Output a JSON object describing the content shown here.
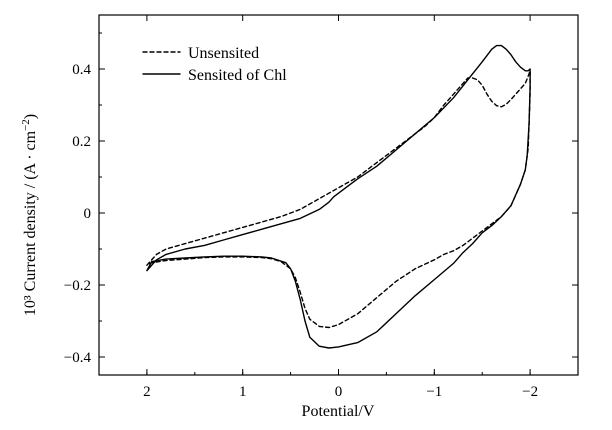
{
  "chart_data": {
    "type": "line",
    "title": "",
    "xlabel": "Potential/V",
    "ylabel_text": "Current density / (A · cm",
    "ylabel_prefix": "10³ ",
    "ylabel_superscript": "−2",
    "ylabel_close": ")",
    "xlim": [
      2.5,
      -2.5
    ],
    "ylim": [
      -0.45,
      0.55
    ],
    "x_ticks": [
      2,
      1,
      0,
      -1,
      -2
    ],
    "x_tick_labels": [
      "2",
      "1",
      "0",
      "−1",
      "−2"
    ],
    "y_ticks": [
      0.4,
      0.2,
      0,
      -0.2,
      -0.4
    ],
    "y_tick_labels": [
      "0.4",
      "0.2",
      "0",
      "−0.2",
      "−0.4"
    ],
    "grid": false,
    "legend_placement": "top-left",
    "series": [
      {
        "name": "Unsensited",
        "style": "dashed",
        "color": "#000000",
        "points": [
          [
            2.0,
            -0.145
          ],
          [
            1.9,
            -0.115
          ],
          [
            1.8,
            -0.1
          ],
          [
            1.6,
            -0.085
          ],
          [
            1.4,
            -0.07
          ],
          [
            1.2,
            -0.055
          ],
          [
            1.0,
            -0.04
          ],
          [
            0.8,
            -0.025
          ],
          [
            0.6,
            -0.01
          ],
          [
            0.4,
            0.01
          ],
          [
            0.2,
            0.04
          ],
          [
            0.1,
            0.055
          ],
          [
            0.0,
            0.07
          ],
          [
            -0.1,
            0.085
          ],
          [
            -0.2,
            0.1
          ],
          [
            -0.3,
            0.12
          ],
          [
            -0.5,
            0.16
          ],
          [
            -0.7,
            0.2
          ],
          [
            -0.9,
            0.24
          ],
          [
            -1.0,
            0.265
          ],
          [
            -1.1,
            0.3
          ],
          [
            -1.2,
            0.33
          ],
          [
            -1.3,
            0.36
          ],
          [
            -1.35,
            0.375
          ],
          [
            -1.4,
            0.375
          ],
          [
            -1.45,
            0.37
          ],
          [
            -1.5,
            0.355
          ],
          [
            -1.55,
            0.33
          ],
          [
            -1.6,
            0.31
          ],
          [
            -1.65,
            0.298
          ],
          [
            -1.7,
            0.295
          ],
          [
            -1.75,
            0.302
          ],
          [
            -1.8,
            0.315
          ],
          [
            -1.85,
            0.33
          ],
          [
            -1.9,
            0.345
          ],
          [
            -1.95,
            0.36
          ],
          [
            -1.98,
            0.38
          ],
          [
            -2.0,
            0.395
          ],
          [
            -2.0,
            0.33
          ],
          [
            -1.98,
            0.18
          ],
          [
            -1.95,
            0.12
          ],
          [
            -1.9,
            0.08
          ],
          [
            -1.85,
            0.05
          ],
          [
            -1.8,
            0.02
          ],
          [
            -1.7,
            -0.01
          ],
          [
            -1.6,
            -0.03
          ],
          [
            -1.5,
            -0.05
          ],
          [
            -1.4,
            -0.07
          ],
          [
            -1.3,
            -0.09
          ],
          [
            -1.2,
            -0.105
          ],
          [
            -1.1,
            -0.115
          ],
          [
            -1.0,
            -0.13
          ],
          [
            -0.8,
            -0.155
          ],
          [
            -0.6,
            -0.19
          ],
          [
            -0.4,
            -0.235
          ],
          [
            -0.2,
            -0.28
          ],
          [
            0.0,
            -0.31
          ],
          [
            0.1,
            -0.318
          ],
          [
            0.2,
            -0.315
          ],
          [
            0.3,
            -0.295
          ],
          [
            0.35,
            -0.265
          ],
          [
            0.4,
            -0.22
          ],
          [
            0.45,
            -0.18
          ],
          [
            0.5,
            -0.155
          ],
          [
            0.6,
            -0.135
          ],
          [
            0.7,
            -0.127
          ],
          [
            0.8,
            -0.124
          ],
          [
            1.0,
            -0.122
          ],
          [
            1.2,
            -0.122
          ],
          [
            1.4,
            -0.124
          ],
          [
            1.6,
            -0.128
          ],
          [
            1.8,
            -0.132
          ],
          [
            1.95,
            -0.138
          ],
          [
            2.0,
            -0.145
          ]
        ]
      },
      {
        "name": "Sensited of Chl",
        "style": "solid",
        "color": "#000000",
        "points": [
          [
            2.0,
            -0.16
          ],
          [
            1.9,
            -0.13
          ],
          [
            1.8,
            -0.115
          ],
          [
            1.6,
            -0.1
          ],
          [
            1.4,
            -0.09
          ],
          [
            1.2,
            -0.075
          ],
          [
            1.0,
            -0.06
          ],
          [
            0.8,
            -0.045
          ],
          [
            0.6,
            -0.03
          ],
          [
            0.4,
            -0.015
          ],
          [
            0.2,
            0.01
          ],
          [
            0.1,
            0.03
          ],
          [
            0.05,
            0.045
          ],
          [
            0.0,
            0.055
          ],
          [
            -0.05,
            0.065
          ],
          [
            -0.2,
            0.095
          ],
          [
            -0.4,
            0.13
          ],
          [
            -0.6,
            0.175
          ],
          [
            -0.8,
            0.22
          ],
          [
            -1.0,
            0.265
          ],
          [
            -1.2,
            0.32
          ],
          [
            -1.35,
            0.37
          ],
          [
            -1.5,
            0.42
          ],
          [
            -1.6,
            0.455
          ],
          [
            -1.65,
            0.465
          ],
          [
            -1.7,
            0.465
          ],
          [
            -1.75,
            0.455
          ],
          [
            -1.8,
            0.44
          ],
          [
            -1.85,
            0.42
          ],
          [
            -1.9,
            0.405
          ],
          [
            -1.95,
            0.395
          ],
          [
            -1.98,
            0.395
          ],
          [
            -2.0,
            0.4
          ],
          [
            -2.0,
            0.35
          ],
          [
            -1.99,
            0.25
          ],
          [
            -1.97,
            0.16
          ],
          [
            -1.95,
            0.12
          ],
          [
            -1.9,
            0.08
          ],
          [
            -1.85,
            0.05
          ],
          [
            -1.8,
            0.02
          ],
          [
            -1.7,
            -0.01
          ],
          [
            -1.6,
            -0.035
          ],
          [
            -1.5,
            -0.055
          ],
          [
            -1.4,
            -0.085
          ],
          [
            -1.3,
            -0.11
          ],
          [
            -1.2,
            -0.14
          ],
          [
            -1.0,
            -0.185
          ],
          [
            -0.8,
            -0.23
          ],
          [
            -0.6,
            -0.28
          ],
          [
            -0.4,
            -0.33
          ],
          [
            -0.2,
            -0.36
          ],
          [
            0.0,
            -0.372
          ],
          [
            0.1,
            -0.375
          ],
          [
            0.2,
            -0.37
          ],
          [
            0.3,
            -0.345
          ],
          [
            0.35,
            -0.3
          ],
          [
            0.4,
            -0.24
          ],
          [
            0.45,
            -0.19
          ],
          [
            0.5,
            -0.155
          ],
          [
            0.55,
            -0.138
          ],
          [
            0.7,
            -0.125
          ],
          [
            0.8,
            -0.122
          ],
          [
            1.0,
            -0.12
          ],
          [
            1.2,
            -0.12
          ],
          [
            1.4,
            -0.122
          ],
          [
            1.6,
            -0.125
          ],
          [
            1.8,
            -0.128
          ],
          [
            1.95,
            -0.135
          ],
          [
            2.0,
            -0.16
          ]
        ]
      }
    ]
  }
}
